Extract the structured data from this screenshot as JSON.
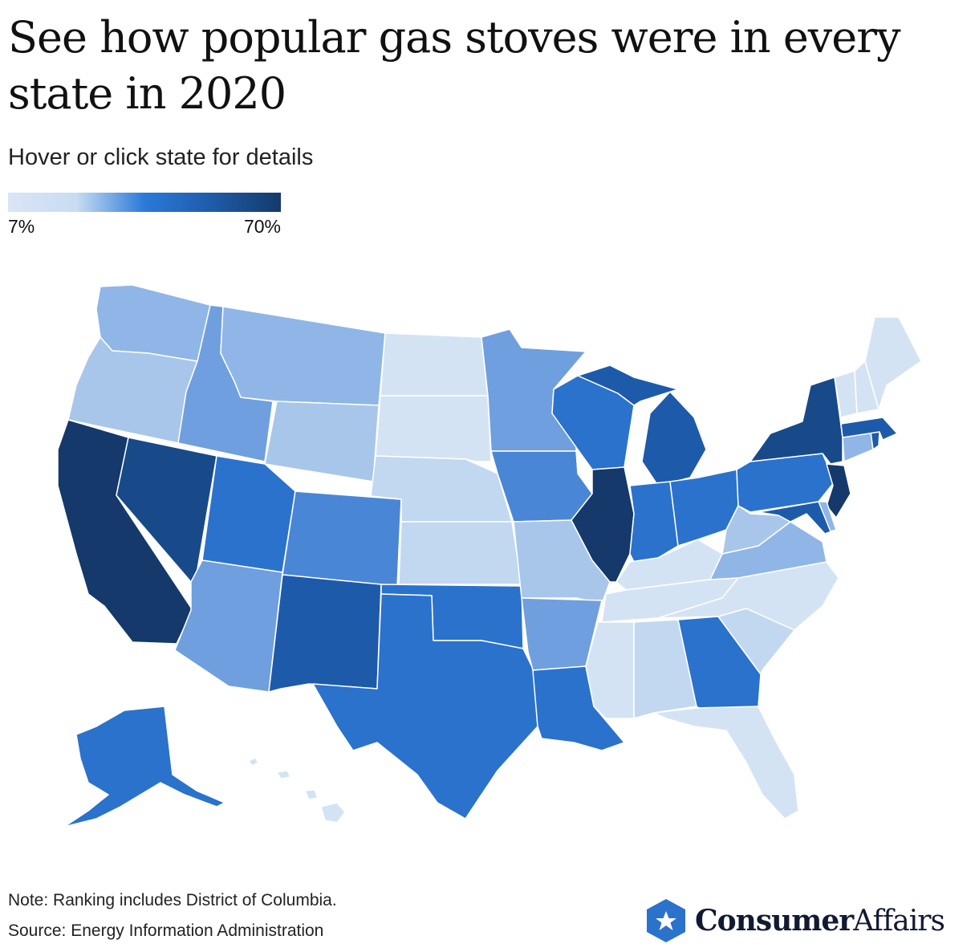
{
  "title": "See how popular gas stoves were in every state in 2020",
  "subtitle": "Hover or click state for details",
  "legend": {
    "min_label": "7%",
    "max_label": "70%"
  },
  "footer": {
    "note": "Note: Ranking includes District of Columbia.",
    "source": "Source: Energy Information Administration"
  },
  "brand": {
    "name_bold": "Consumer",
    "name_regular": "Affairs",
    "icon": "star-hexagon-logo-icon"
  },
  "colors": {
    "level_1": "#d4e3f4",
    "level_2": "#c2d8f1",
    "level_3": "#a8c6ea",
    "level_4": "#8fb6e6",
    "level_5": "#6f9fde",
    "level_6": "#4a86d6",
    "level_7": "#2a72cc",
    "level_8": "#1d5aaa",
    "level_9": "#184a8a",
    "level_10": "#14396a"
  },
  "map": {
    "type": "choropleth",
    "region": "United States",
    "scale_range_percent": [
      7,
      70
    ],
    "states": [
      {
        "code": "WA",
        "level": 4
      },
      {
        "code": "OR",
        "level": 3
      },
      {
        "code": "CA",
        "level": 10
      },
      {
        "code": "ID",
        "level": 5
      },
      {
        "code": "NV",
        "level": 9
      },
      {
        "code": "MT",
        "level": 4
      },
      {
        "code": "WY",
        "level": 3
      },
      {
        "code": "UT",
        "level": 7
      },
      {
        "code": "AZ",
        "level": 5
      },
      {
        "code": "CO",
        "level": 6
      },
      {
        "code": "NM",
        "level": 8
      },
      {
        "code": "ND",
        "level": 1
      },
      {
        "code": "SD",
        "level": 1
      },
      {
        "code": "NE",
        "level": 2
      },
      {
        "code": "KS",
        "level": 2
      },
      {
        "code": "OK",
        "level": 7
      },
      {
        "code": "TX",
        "level": 7
      },
      {
        "code": "MN",
        "level": 5
      },
      {
        "code": "IA",
        "level": 6
      },
      {
        "code": "MO",
        "level": 3
      },
      {
        "code": "AR",
        "level": 5
      },
      {
        "code": "LA",
        "level": 7
      },
      {
        "code": "WI",
        "level": 7
      },
      {
        "code": "IL",
        "level": 10
      },
      {
        "code": "MI",
        "level": 8
      },
      {
        "code": "IN",
        "level": 7
      },
      {
        "code": "OH",
        "level": 7
      },
      {
        "code": "KY",
        "level": 1
      },
      {
        "code": "TN",
        "level": 1
      },
      {
        "code": "MS",
        "level": 1
      },
      {
        "code": "AL",
        "level": 2
      },
      {
        "code": "GA",
        "level": 7
      },
      {
        "code": "FL",
        "level": 1
      },
      {
        "code": "SC",
        "level": 2
      },
      {
        "code": "NC",
        "level": 1
      },
      {
        "code": "VA",
        "level": 4
      },
      {
        "code": "WV",
        "level": 3
      },
      {
        "code": "PA",
        "level": 7
      },
      {
        "code": "NY",
        "level": 9
      },
      {
        "code": "NJ",
        "level": 10
      },
      {
        "code": "DE",
        "level": 4
      },
      {
        "code": "MD",
        "level": 8
      },
      {
        "code": "CT",
        "level": 4
      },
      {
        "code": "RI",
        "level": 8
      },
      {
        "code": "MA",
        "level": 8
      },
      {
        "code": "VT",
        "level": 1
      },
      {
        "code": "NH",
        "level": 1
      },
      {
        "code": "ME",
        "level": 1
      },
      {
        "code": "AK",
        "level": 7
      },
      {
        "code": "HI",
        "level": 1
      }
    ]
  }
}
